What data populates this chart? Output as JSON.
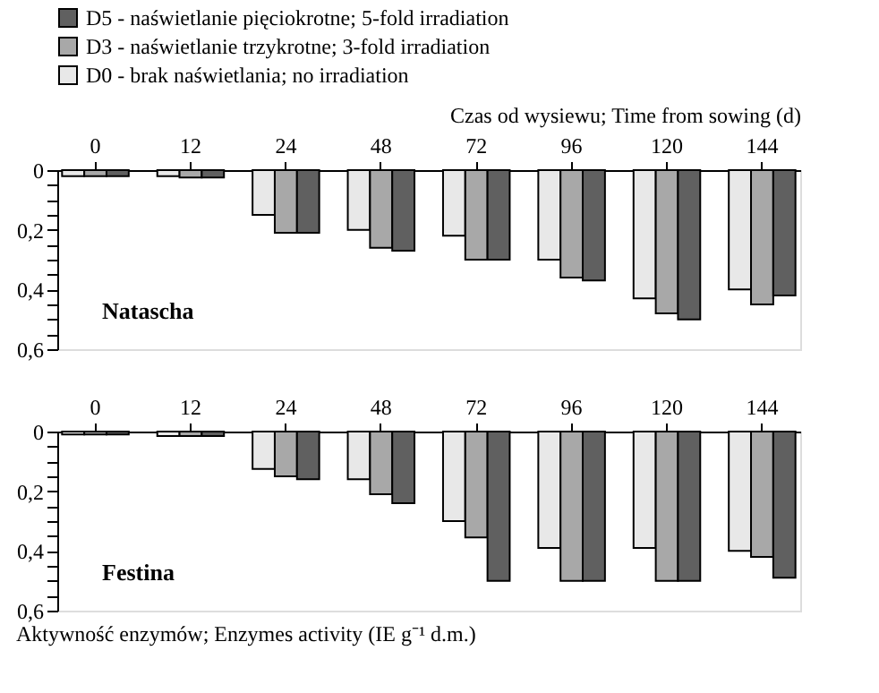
{
  "chart_data": [
    {
      "type": "bar",
      "xlabel": "Czas od wysiewu; Time from sowing (d)",
      "annotations": [
        "Natascha"
      ],
      "legend": "top left",
      "grid": false,
      "categories": [
        "0",
        "12",
        "24",
        "48",
        "72",
        "96",
        "120",
        "144"
      ],
      "series": [
        {
          "name": "D0 - brak naświetlania; no irradiation",
          "color": "#e8e8e8",
          "values": [
            0.02,
            0.02,
            0.15,
            0.2,
            0.22,
            0.3,
            0.43,
            0.4
          ]
        },
        {
          "name": "D3 - naświetlanie trzykrotne; 3-fold irradiation",
          "color": "#a8a8a8",
          "values": [
            0.02,
            0.025,
            0.21,
            0.26,
            0.3,
            0.36,
            0.48,
            0.45
          ]
        },
        {
          "name": "D5 - naświetlanie pięciokrotne; 5-fold irradiation",
          "color": "#606060",
          "values": [
            0.02,
            0.025,
            0.21,
            0.27,
            0.3,
            0.37,
            0.5,
            0.42
          ]
        }
      ],
      "ylim": [
        0.6,
        0
      ],
      "yticks": [
        0,
        {
          "value": 0.05,
          "label": null
        },
        {
          "value": 0.1,
          "label": null
        },
        {
          "value": 0.15,
          "label": null
        },
        {
          "value": 0.2,
          "label": "0,2"
        },
        {
          "value": 0.25,
          "label": null
        },
        {
          "value": 0.3,
          "label": null
        },
        {
          "value": 0.35,
          "label": null
        },
        {
          "value": 0.4,
          "label": "0,4"
        },
        {
          "value": 0.45,
          "label": null
        },
        {
          "value": 0.5,
          "label": null
        },
        {
          "value": 0.55,
          "label": null
        },
        {
          "value": 0.6,
          "label": "0,6"
        }
      ]
    },
    {
      "type": "bar",
      "ylabel": "Aktywność enzymów; Enzymes activity (IE g⁻¹ d.m.)",
      "annotations": [
        "Festina"
      ],
      "grid": false,
      "categories": [
        "0",
        "12",
        "24",
        "48",
        "72",
        "96",
        "120",
        "144"
      ],
      "series": [
        {
          "name": "D0 - brak naświetlania; no irradiation",
          "color": "#e8e8e8",
          "values": [
            0.01,
            0.015,
            0.125,
            0.16,
            0.3,
            0.39,
            0.39,
            0.4
          ]
        },
        {
          "name": "D3 - naświetlanie trzykrotne; 3-fold irradiation",
          "color": "#a8a8a8",
          "values": [
            0.01,
            0.015,
            0.15,
            0.21,
            0.355,
            0.5,
            0.5,
            0.42
          ]
        },
        {
          "name": "D5 - naświetlanie pięciokrotne; 5-fold irradiation",
          "color": "#606060",
          "values": [
            0.01,
            0.015,
            0.16,
            0.24,
            0.5,
            0.5,
            0.5,
            0.49
          ]
        }
      ],
      "ylim": [
        0.6,
        0
      ],
      "yticks": [
        0,
        {
          "value": 0.05,
          "label": null
        },
        {
          "value": 0.1,
          "label": null
        },
        {
          "value": 0.15,
          "label": null
        },
        {
          "value": 0.2,
          "label": "0,2"
        },
        {
          "value": 0.25,
          "label": null
        },
        {
          "value": 0.3,
          "label": null
        },
        {
          "value": 0.35,
          "label": null
        },
        {
          "value": 0.4,
          "label": "0,4"
        },
        {
          "value": 0.45,
          "label": null
        },
        {
          "value": 0.5,
          "label": null
        },
        {
          "value": 0.55,
          "label": null
        },
        {
          "value": 0.6,
          "label": "0,6"
        }
      ]
    }
  ]
}
